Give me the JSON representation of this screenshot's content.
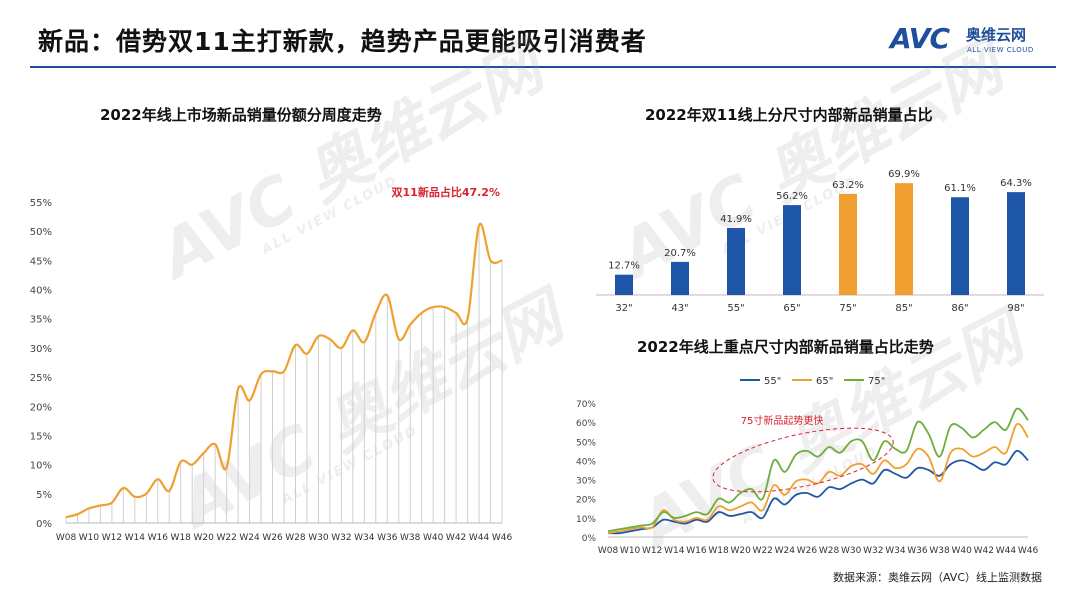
{
  "header": {
    "title": "新品：借势双11主打新款，趋势产品更能吸引消费者",
    "logo_mark": "AVC",
    "logo_cn": "奥维云网",
    "logo_en": "ALL VIEW CLOUD"
  },
  "watermark": {
    "mark": "AVC 奥维云网",
    "sub": "ALL VIEW CLOUD"
  },
  "source": "数据来源：奥维云网（AVC）线上监测数据",
  "colors": {
    "orange": "#f0a030",
    "blue": "#1f57a8",
    "green": "#6cae3c",
    "brand": "#1f4e9c",
    "annotation": "#d9232e"
  },
  "chart_data": [
    {
      "type": "area",
      "title": "2022年线上市场新品销量份额分周度走势",
      "annotation": "双11新品占比47.2%",
      "ylim": [
        0,
        55
      ],
      "yticks": [
        "0%",
        "5%",
        "10%",
        "15%",
        "20%",
        "25%",
        "30%",
        "35%",
        "40%",
        "45%",
        "50%",
        "55%"
      ],
      "xticks": [
        "W08",
        "W10",
        "W12",
        "W14",
        "W16",
        "W18",
        "W20",
        "W22",
        "W24",
        "W26",
        "W28",
        "W30",
        "W32",
        "W34",
        "W36",
        "W38",
        "W40",
        "W42",
        "W44",
        "W46"
      ],
      "x": [
        "W08",
        "W09",
        "W10",
        "W11",
        "W12",
        "W13",
        "W14",
        "W15",
        "W16",
        "W17",
        "W18",
        "W19",
        "W20",
        "W21",
        "W22",
        "W23",
        "W24",
        "W25",
        "W26",
        "W27",
        "W28",
        "W29",
        "W30",
        "W31",
        "W32",
        "W33",
        "W34",
        "W35",
        "W36",
        "W37",
        "W38",
        "W39",
        "W40",
        "W41",
        "W42",
        "W43",
        "W44",
        "W45",
        "W46"
      ],
      "values": [
        1.0,
        1.5,
        2.5,
        3.0,
        3.5,
        6.0,
        4.5,
        5.0,
        7.5,
        5.5,
        10.5,
        10.0,
        12.0,
        13.5,
        9.5,
        23.0,
        21.0,
        25.5,
        26.0,
        26.0,
        30.5,
        29.0,
        32.0,
        31.5,
        30.0,
        33.0,
        31.0,
        36.0,
        39.0,
        31.5,
        34.0,
        36.0,
        37.0,
        37.0,
        36.0,
        35.0,
        51.0,
        45.0,
        45.0
      ],
      "grid": false
    },
    {
      "type": "bar",
      "title": "2022年双11线上分尺寸内部新品销量占比",
      "categories": [
        "32\"",
        "43\"",
        "55\"",
        "65\"",
        "75\"",
        "85\"",
        "86\"",
        "98\""
      ],
      "values": [
        12.7,
        20.7,
        41.9,
        56.2,
        63.2,
        69.9,
        61.1,
        64.3
      ],
      "labels": [
        "12.7%",
        "20.7%",
        "41.9%",
        "56.2%",
        "63.2%",
        "69.9%",
        "61.1%",
        "64.3%"
      ],
      "highlight": [
        "75\"",
        "85\""
      ],
      "ylim": [
        0,
        75
      ]
    },
    {
      "type": "line",
      "title": "2022年线上重点尺寸内部新品销量占比走势",
      "annotation": "75寸新品起势更快",
      "legend_position": "top",
      "ylim": [
        0,
        70
      ],
      "yticks": [
        "0%",
        "10%",
        "20%",
        "30%",
        "40%",
        "50%",
        "60%",
        "70%"
      ],
      "xticks": [
        "W08",
        "W10",
        "W12",
        "W14",
        "W16",
        "W18",
        "W20",
        "W22",
        "W24",
        "W26",
        "W28",
        "W30",
        "W32",
        "W34",
        "W36",
        "W38",
        "W40",
        "W42",
        "W44",
        "W46"
      ],
      "x": [
        "W08",
        "W09",
        "W10",
        "W11",
        "W12",
        "W13",
        "W14",
        "W15",
        "W16",
        "W17",
        "W18",
        "W19",
        "W20",
        "W21",
        "W22",
        "W23",
        "W24",
        "W25",
        "W26",
        "W27",
        "W28",
        "W29",
        "W30",
        "W31",
        "W32",
        "W33",
        "W34",
        "W35",
        "W36",
        "W37",
        "W38",
        "W39",
        "W40",
        "W41",
        "W42",
        "W43",
        "W44",
        "W45",
        "W46"
      ],
      "series": [
        {
          "name": "55\"",
          "values": [
            2,
            2,
            3,
            4,
            5,
            9,
            8,
            7,
            9,
            8,
            13,
            11,
            12,
            13,
            10,
            20,
            17,
            22,
            23,
            21,
            26,
            25,
            28,
            30,
            28,
            35,
            33,
            31,
            36,
            35,
            32,
            38,
            40,
            38,
            35,
            39,
            38,
            45,
            40
          ]
        },
        {
          "name": "65\"",
          "values": [
            2,
            3,
            4,
            5,
            5,
            14,
            9,
            8,
            10,
            9,
            16,
            14,
            16,
            18,
            14,
            27,
            22,
            29,
            30,
            28,
            34,
            32,
            37,
            38,
            33,
            40,
            36,
            38,
            46,
            42,
            29,
            44,
            46,
            42,
            44,
            47,
            44,
            59,
            52
          ]
        },
        {
          "name": "75\"",
          "values": [
            3,
            4,
            5,
            6,
            7,
            13,
            10,
            11,
            13,
            12,
            20,
            18,
            23,
            25,
            20,
            40,
            34,
            43,
            45,
            42,
            47,
            44,
            50,
            50,
            40,
            50,
            46,
            45,
            60,
            54,
            42,
            58,
            57,
            52,
            56,
            60,
            56,
            67,
            61
          ]
        }
      ]
    }
  ]
}
